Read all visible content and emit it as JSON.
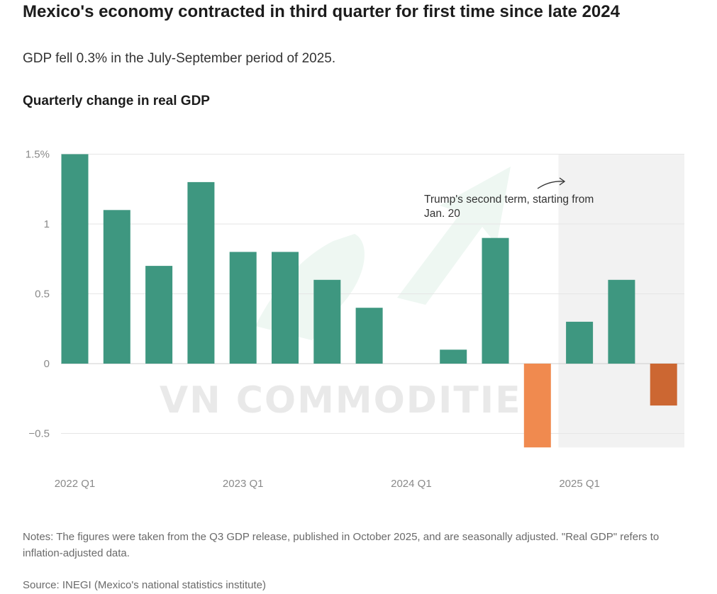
{
  "title": "Mexico's economy contracted in third quarter for first time since late 2024",
  "subtitle": "GDP fell 0.3% in the July-September period of 2025.",
  "chart_title": "Quarterly change in real GDP",
  "notes": "Notes: The figures were taken from the Q3 GDP release, published in October 2025, and are seasonally adjusted. \"Real GDP\" refers to inflation-adjusted data.",
  "source": "Source: INEGI (Mexico's national statistics institute)",
  "watermark": "VN COMMODITIES",
  "chart_data": {
    "type": "bar",
    "title": "Quarterly change in real GDP",
    "xlabel": "",
    "ylabel": "",
    "categories": [
      "2022 Q1",
      "2022 Q2",
      "2022 Q3",
      "2022 Q4",
      "2023 Q1",
      "2023 Q2",
      "2023 Q3",
      "2023 Q4",
      "2024 Q1",
      "2024 Q2",
      "2024 Q3",
      "2024 Q4",
      "2025 Q1",
      "2025 Q2",
      "2025 Q3"
    ],
    "values": [
      1.5,
      1.1,
      0.7,
      1.3,
      0.8,
      0.8,
      0.6,
      0.4,
      0.0,
      0.1,
      0.9,
      -0.6,
      0.3,
      0.6,
      -0.3
    ],
    "x_tick_labels": [
      {
        "category": "2022 Q1",
        "label": "2022 Q1"
      },
      {
        "category": "2023 Q1",
        "label": "2023 Q1"
      },
      {
        "category": "2024 Q1",
        "label": "2024 Q1"
      },
      {
        "category": "2025 Q1",
        "label": "2025 Q1"
      }
    ],
    "y_ticks": [
      {
        "value": 1.5,
        "label": "1.5%"
      },
      {
        "value": 1,
        "label": "1"
      },
      {
        "value": 0.5,
        "label": "0.5"
      },
      {
        "value": 0,
        "label": "0"
      },
      {
        "value": -0.5,
        "label": "−0.5"
      }
    ],
    "ylim": [
      -0.6,
      1.5
    ],
    "grid": true,
    "colors": {
      "positive": "#3e9780",
      "negative": "#f08a4f",
      "negative_latest": "#cc6732",
      "shade": "#f2f2f2",
      "grid": "#e6e6e6"
    },
    "shaded_region": {
      "from": "2025 Q1",
      "to": "2025 Q3"
    },
    "annotation": {
      "lines": [
        "Trump's second term, starting from",
        "Jan. 20"
      ],
      "target": "2025 Q1"
    }
  }
}
